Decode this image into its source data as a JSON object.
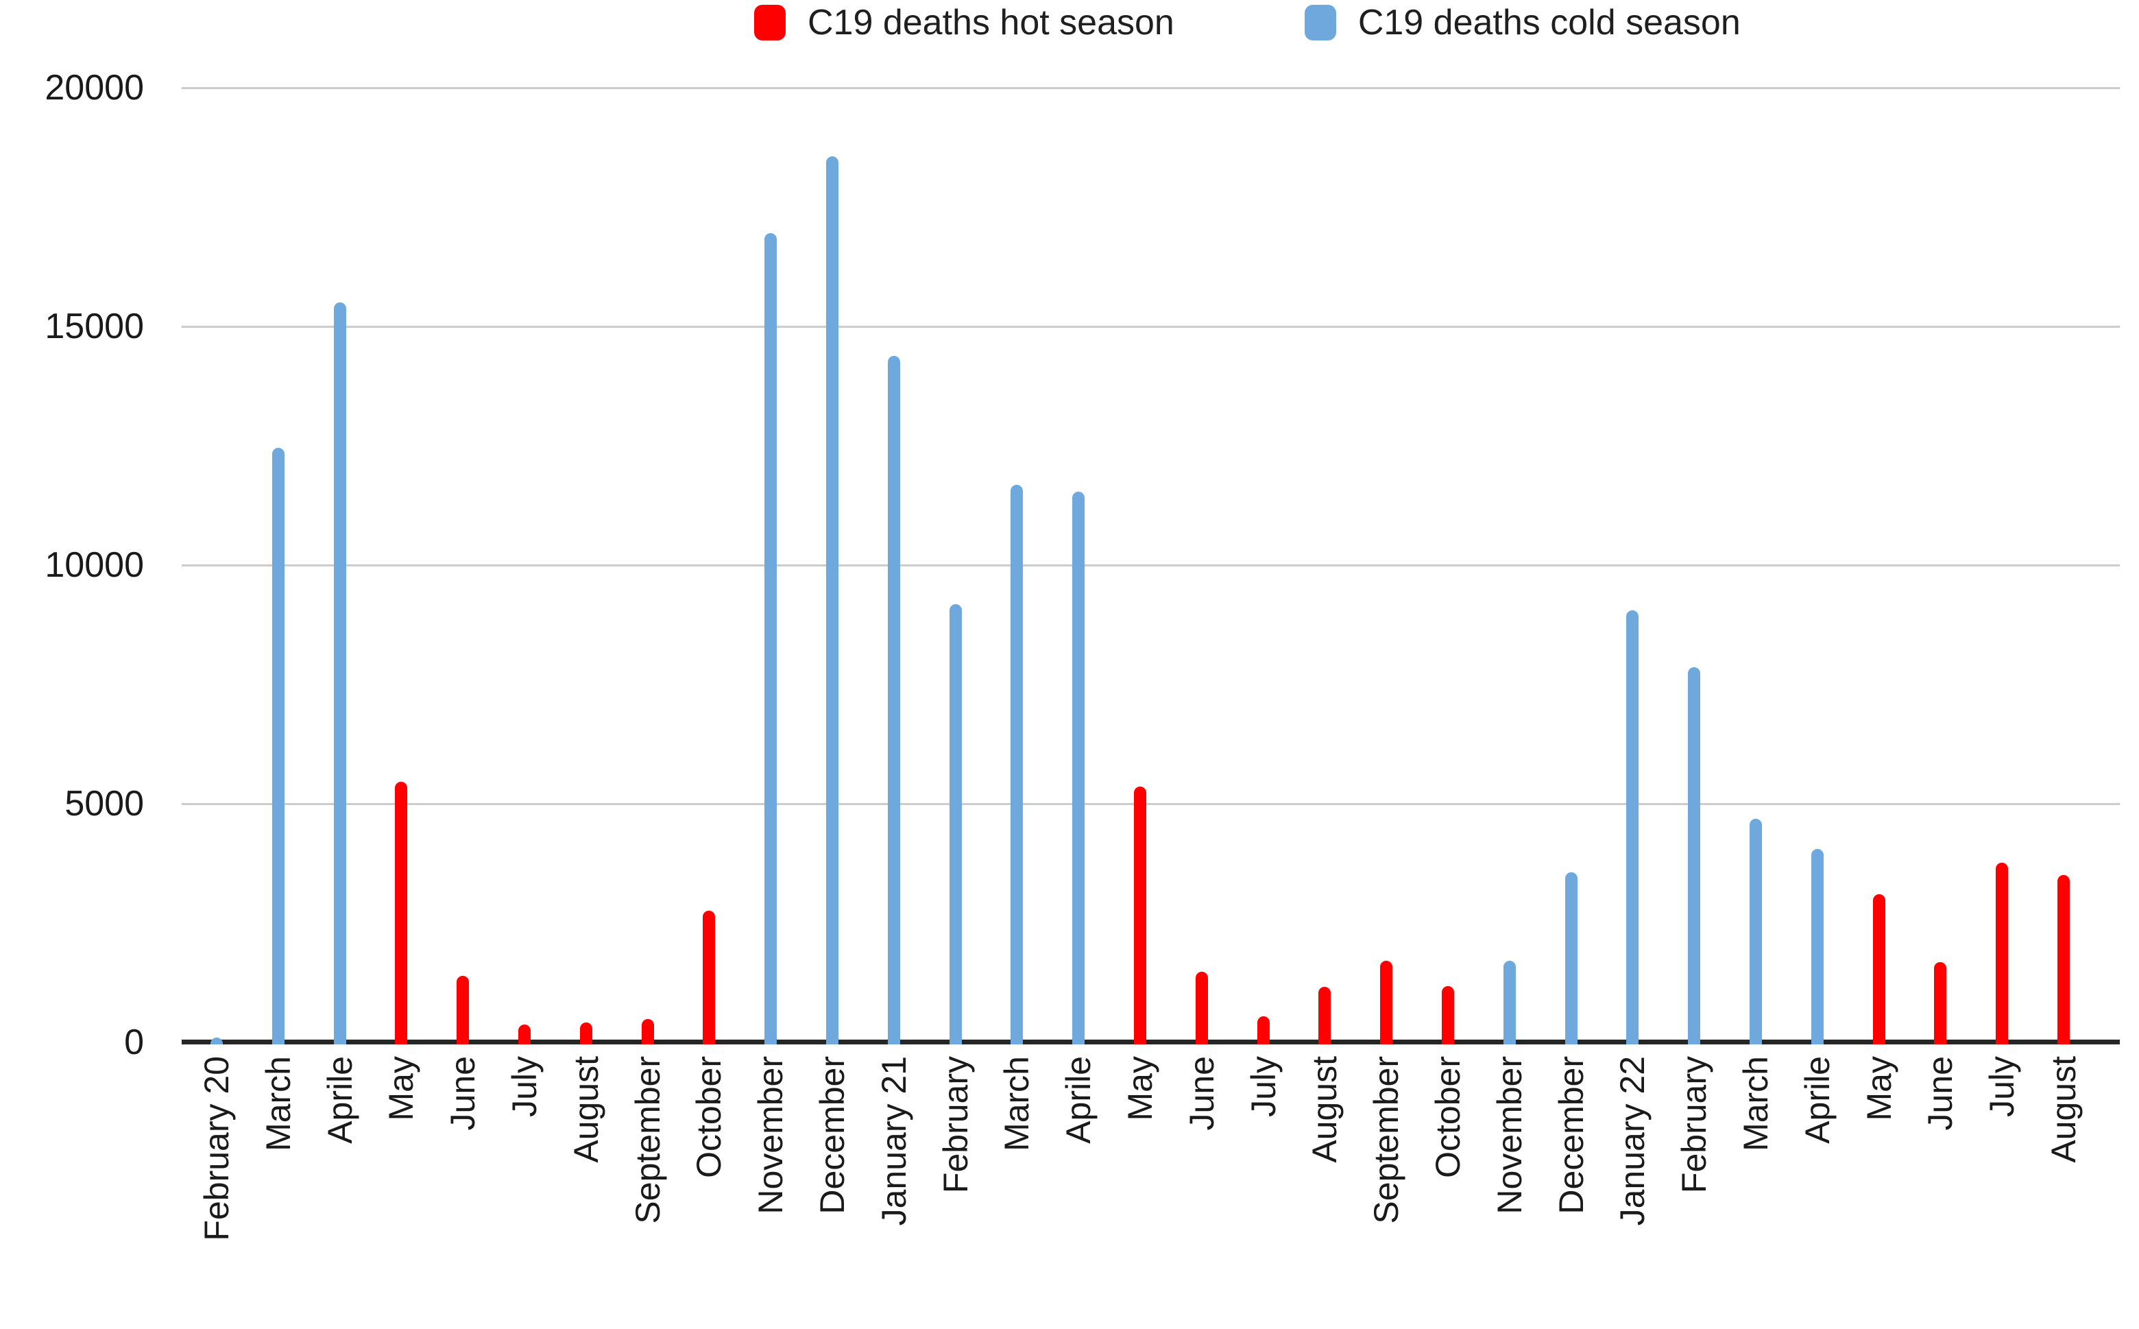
{
  "chart_data": {
    "type": "bar",
    "title": "",
    "xlabel": "",
    "ylabel": "",
    "grid": true,
    "legend_position": "top",
    "x_label_rotation": -90,
    "ylim": [
      0,
      20000
    ],
    "yticks": [
      0,
      5000,
      10000,
      15000,
      20000
    ],
    "categories": [
      "February 20",
      "March",
      "Aprile",
      "May",
      "June",
      "July",
      "August",
      "September",
      "October",
      "November",
      "December",
      "January 21",
      "February",
      "March",
      "Aprile",
      "May",
      "June",
      "July",
      "August",
      "September",
      "October",
      "November",
      "December",
      "January 22",
      "February",
      "March",
      "Aprile",
      "May",
      "June",
      "July",
      "August"
    ],
    "series": [
      {
        "name": "C19 deaths hot season",
        "color": "#ff0000",
        "values": [
          null,
          null,
          null,
          5400,
          1330,
          320,
          360,
          430,
          2700,
          null,
          null,
          null,
          null,
          null,
          null,
          5300,
          1420,
          490,
          1100,
          1650,
          1120,
          null,
          null,
          null,
          null,
          null,
          null,
          3050,
          1620,
          3700,
          3450
        ]
      },
      {
        "name": "C19 deaths cold season",
        "color": "#6fa8dc",
        "values": [
          50,
          12400,
          15450,
          null,
          null,
          null,
          null,
          null,
          null,
          16900,
          18500,
          14320,
          9120,
          11620,
          11480,
          null,
          null,
          null,
          null,
          null,
          null,
          1650,
          3500,
          9000,
          7800,
          4620,
          4000,
          null,
          null,
          null,
          null
        ]
      }
    ]
  }
}
